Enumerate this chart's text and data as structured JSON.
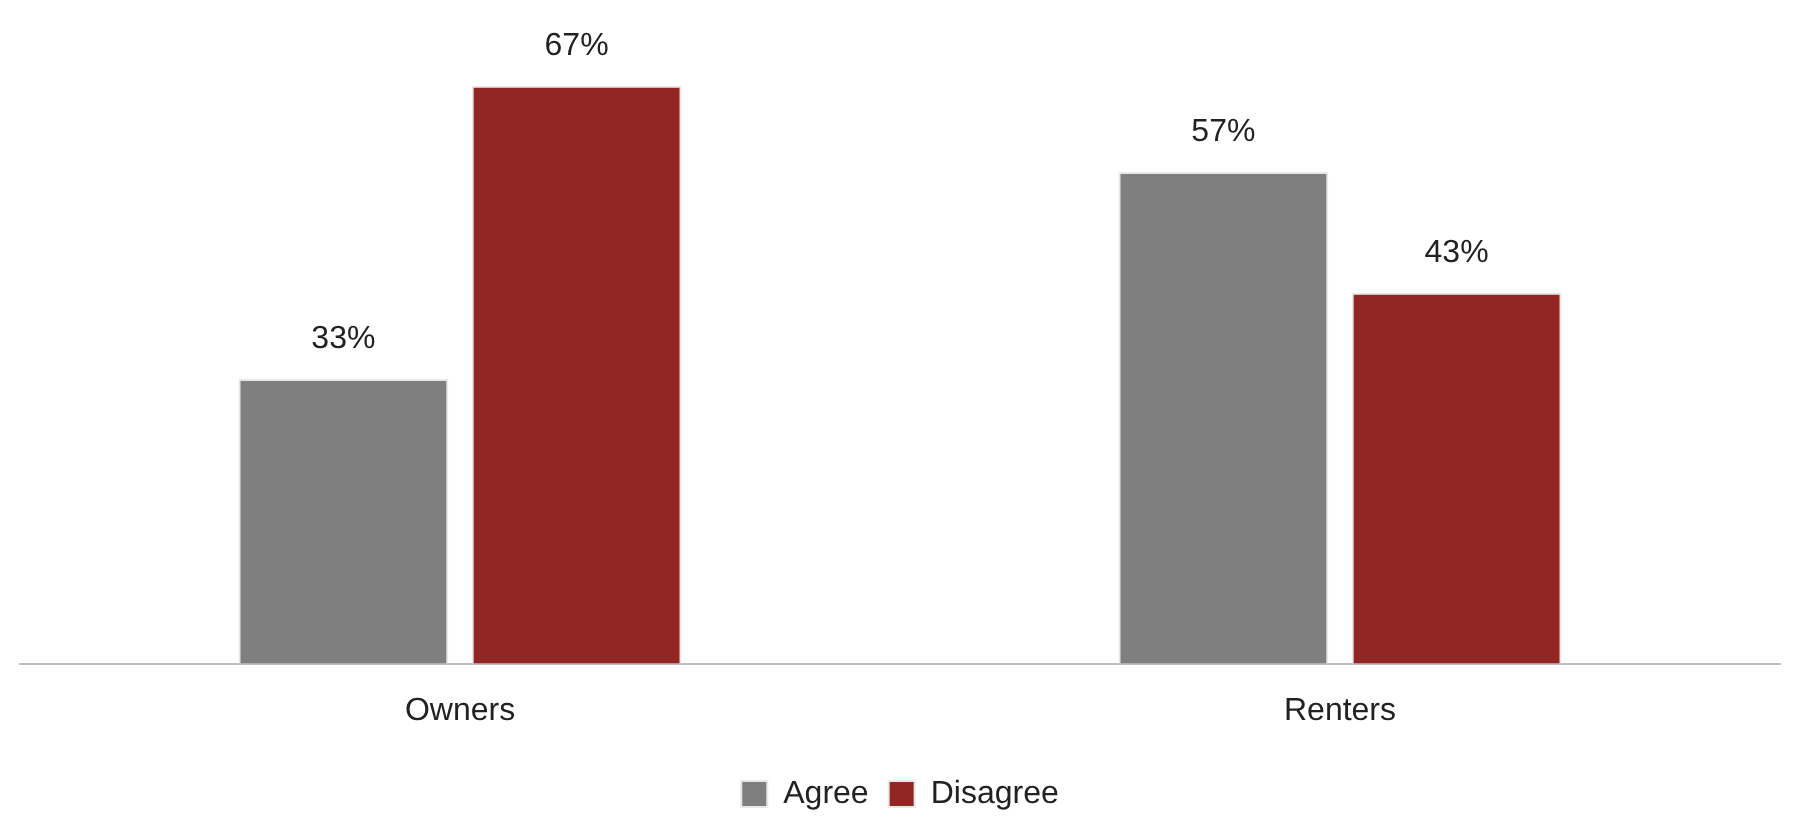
{
  "chart_data": {
    "type": "bar",
    "categories": [
      "Owners",
      "Renters"
    ],
    "series": [
      {
        "name": "Agree",
        "color": "#7f7f7f",
        "values": [
          33,
          57
        ],
        "value_labels": [
          "33%",
          "57%"
        ]
      },
      {
        "name": "Disagree",
        "color": "#922622",
        "values": [
          67,
          43
        ],
        "value_labels": [
          "67%",
          "43%"
        ]
      }
    ],
    "legend": "bottom",
    "grid": false
  }
}
